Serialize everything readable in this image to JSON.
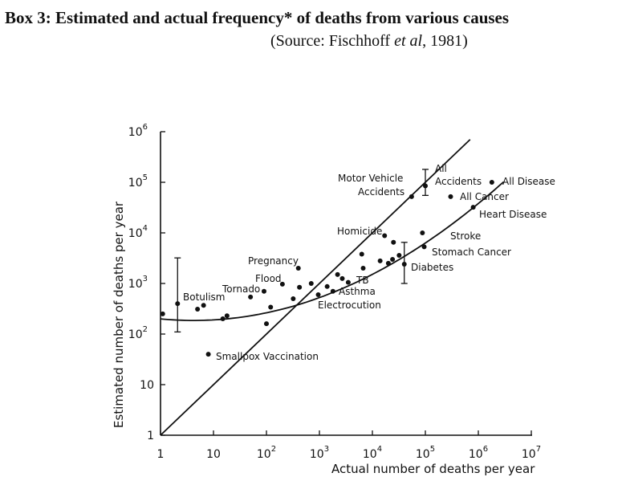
{
  "header": {
    "title": "Box 3: Estimated and actual frequency* of deaths from various causes",
    "source_prefix": "(Source: Fischhoff ",
    "source_italic": "et al",
    "source_suffix": ", 1981)"
  },
  "chart_data": {
    "type": "scatter",
    "xscale": "log",
    "yscale": "log",
    "xlim": [
      1,
      10000000
    ],
    "ylim": [
      1,
      1000000
    ],
    "xlabel": "Actual number of deaths per year",
    "ylabel": "Estimated number of deaths per year",
    "x_tick_labels": [
      {
        "base": "1",
        "exp": ""
      },
      {
        "base": "10",
        "exp": ""
      },
      {
        "base": "10",
        "exp": "2"
      },
      {
        "base": "10",
        "exp": "3"
      },
      {
        "base": "10",
        "exp": "4"
      },
      {
        "base": "10",
        "exp": "5"
      },
      {
        "base": "10",
        "exp": "6"
      },
      {
        "base": "10",
        "exp": "7"
      }
    ],
    "y_tick_labels": [
      {
        "base": "1",
        "exp": ""
      },
      {
        "base": "10",
        "exp": ""
      },
      {
        "base": "10",
        "exp": "2"
      },
      {
        "base": "10",
        "exp": "3"
      },
      {
        "base": "10",
        "exp": "4"
      },
      {
        "base": "10",
        "exp": "5"
      },
      {
        "base": "10",
        "exp": "6"
      }
    ],
    "points": [
      {
        "x": 1.1,
        "y": 250
      },
      {
        "x": 2.1,
        "y": 400,
        "label": "Botulism"
      },
      {
        "x": 5,
        "y": 310
      },
      {
        "x": 6.5,
        "y": 370
      },
      {
        "x": 8,
        "y": 40,
        "label": "Smallpox Vaccination"
      },
      {
        "x": 15,
        "y": 200
      },
      {
        "x": 18,
        "y": 230
      },
      {
        "x": 50,
        "y": 540,
        "label": "Tornado"
      },
      {
        "x": 90,
        "y": 700,
        "label": "Flood"
      },
      {
        "x": 100,
        "y": 160
      },
      {
        "x": 120,
        "y": 340
      },
      {
        "x": 200,
        "y": 970
      },
      {
        "x": 320,
        "y": 500
      },
      {
        "x": 400,
        "y": 2000,
        "label": "Pregnancy"
      },
      {
        "x": 420,
        "y": 840
      },
      {
        "x": 700,
        "y": 1000
      },
      {
        "x": 950,
        "y": 600,
        "label": "Electrocution"
      },
      {
        "x": 1400,
        "y": 870
      },
      {
        "x": 1800,
        "y": 700,
        "label": "Asthma"
      },
      {
        "x": 2200,
        "y": 1500
      },
      {
        "x": 2700,
        "y": 1250
      },
      {
        "x": 3500,
        "y": 1050,
        "label": "TB"
      },
      {
        "x": 6300,
        "y": 3800
      },
      {
        "x": 6700,
        "y": 2000
      },
      {
        "x": 14000,
        "y": 2800
      },
      {
        "x": 17000,
        "y": 8800,
        "label": "Homicide"
      },
      {
        "x": 20000,
        "y": 2500
      },
      {
        "x": 24000,
        "y": 3000
      },
      {
        "x": 25000,
        "y": 6500
      },
      {
        "x": 32000,
        "y": 3600
      },
      {
        "x": 40000,
        "y": 2400,
        "label": "Diabetes"
      },
      {
        "x": 55000,
        "y": 52000,
        "label": "Motor Vehicle Accidents"
      },
      {
        "x": 88000,
        "y": 10000,
        "label": "Stroke"
      },
      {
        "x": 95000,
        "y": 5300,
        "label": "Stomach Cancer"
      },
      {
        "x": 100000,
        "y": 85000,
        "label": "All Accidents"
      },
      {
        "x": 300000,
        "y": 52000,
        "label": "All Cancer"
      },
      {
        "x": 800000,
        "y": 32000,
        "label": "Heart Disease"
      },
      {
        "x": 1800000,
        "y": 100000,
        "label": "All Disease"
      }
    ],
    "error_bars": [
      {
        "x": 2.1,
        "low": 110,
        "high": 3200
      },
      {
        "x": 40000,
        "low": 1000,
        "high": 6500
      },
      {
        "x": 100000,
        "low": 55000,
        "high": 180000
      }
    ],
    "label_text": {
      "botulism": "Botulism",
      "smallpox": "Smallpox Vaccination",
      "tornado": "Tornado",
      "flood": "Flood",
      "pregnancy": "Pregnancy",
      "tb": "TB",
      "asthma": "Asthma",
      "electrocution": "Electrocution",
      "homicide": "Homicide",
      "diabetes": "Diabetes",
      "motor_vehicle_1": "Motor Vehicle",
      "motor_vehicle_2": "Accidents",
      "all_accidents_1": "All",
      "all_accidents_2": "Accidents",
      "all_disease": "All Disease",
      "all_cancer": "All Cancer",
      "heart_disease": "Heart Disease",
      "stroke": "Stroke",
      "stomach_cancer": "Stomach Cancer"
    },
    "lines": [
      {
        "kind": "identity",
        "from": [
          1,
          1
        ],
        "to": [
          700000,
          700000
        ]
      },
      {
        "kind": "fitted-curve",
        "log_coefficients": [
          2.3,
          -0.1,
          0.08
        ],
        "x_range": [
          1,
          3000000
        ]
      }
    ],
    "grid": false,
    "legend": "none"
  }
}
